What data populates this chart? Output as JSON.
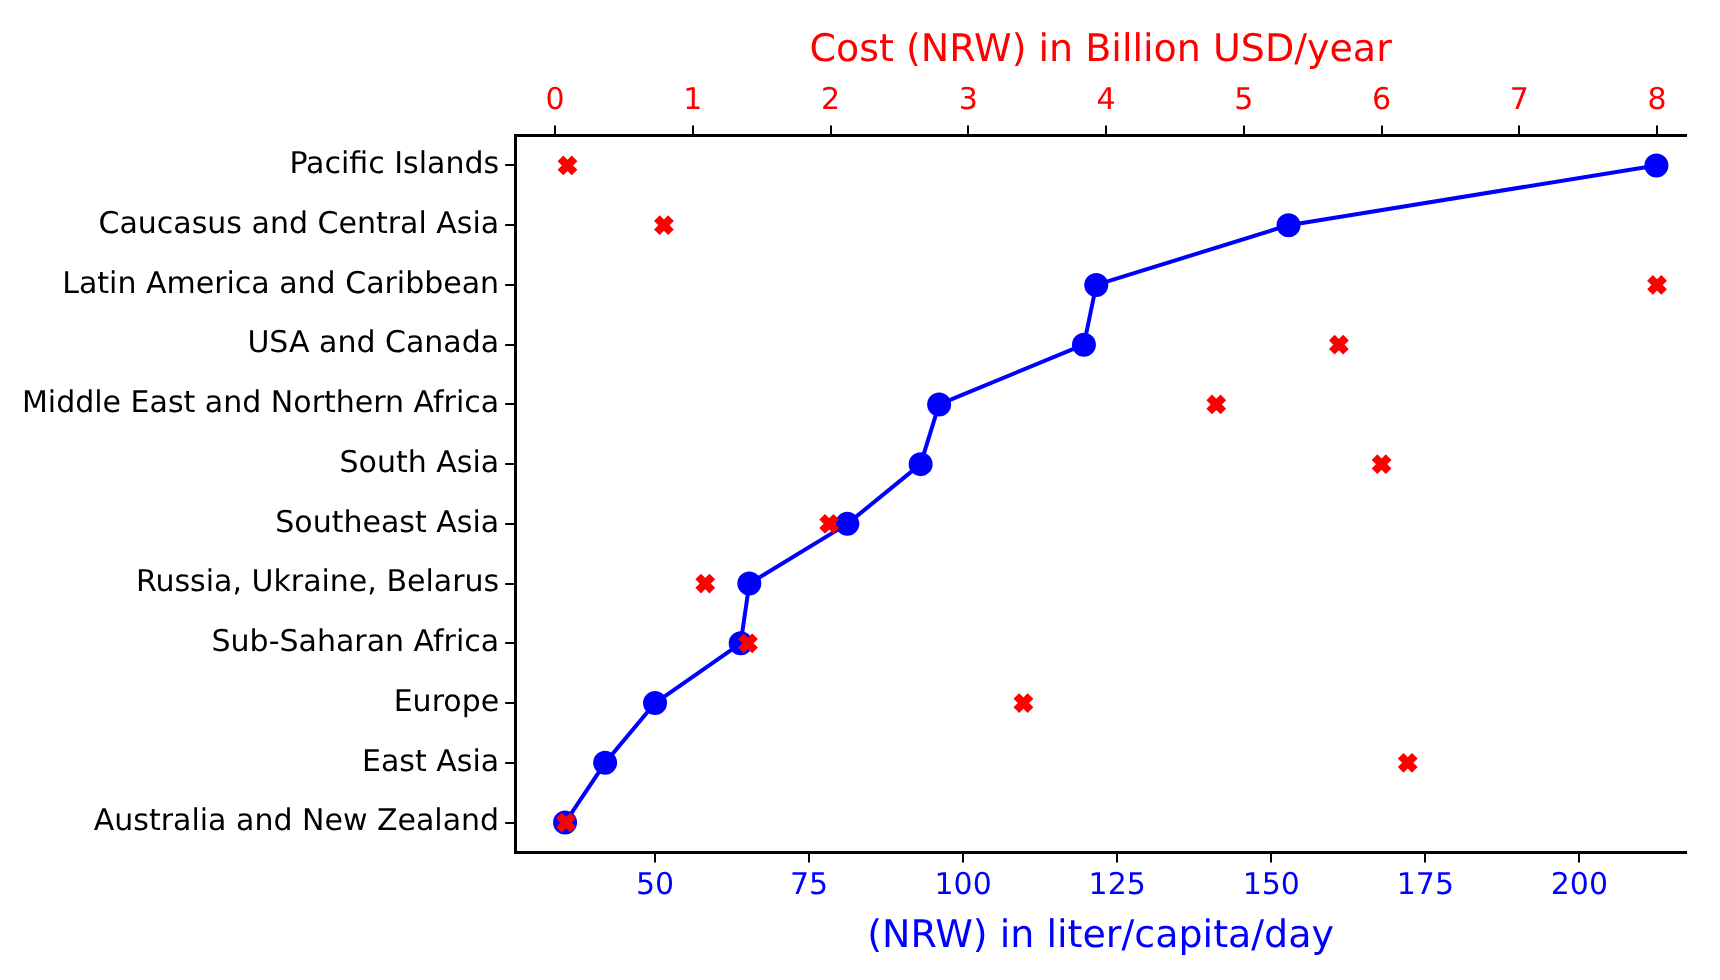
{
  "chart_data": {
    "type": "line",
    "orientation": "horizontal",
    "xlabel": "(NRW) in liter/capita/day",
    "x2label": "Cost (NRW) in Billion USD/year",
    "categories": [
      "Pacific Islands",
      "Caucasus and Central Asia",
      "Latin America and Caribbean",
      "USA and Canada",
      "Middle East and Northern Africa",
      "South Asia",
      "Southeast Asia",
      "Russia, Ukraine, Belarus",
      "Sub-Saharan Africa",
      "Europe",
      "East Asia",
      "Australia and New Zealand"
    ],
    "series": [
      {
        "color": "#0000ff",
        "marker": "circle",
        "values": [
          212.5,
          152.8,
          121.6,
          119.6,
          96.1,
          93.1,
          81.2,
          65.3,
          63.9,
          50,
          41.9,
          35.4
        ]
      },
      {
        "type": "scatter",
        "axis": "x2",
        "color": "#ff0000",
        "marker": "cross",
        "values": [
          0.09,
          0.79,
          8.0,
          5.69,
          4.8,
          6.0,
          1.99,
          1.09,
          1.4,
          3.4,
          6.19,
          0.08
        ]
      }
    ],
    "xlim": [
      27.3,
      217.3
    ],
    "xticks": [
      50,
      75,
      100,
      125,
      150,
      175,
      200
    ],
    "x2lim": [
      -0.29,
      8.21
    ],
    "x2ticks": [
      0,
      1,
      2,
      3,
      4,
      5,
      6,
      7,
      8
    ],
    "grid": false,
    "legend": false
  }
}
